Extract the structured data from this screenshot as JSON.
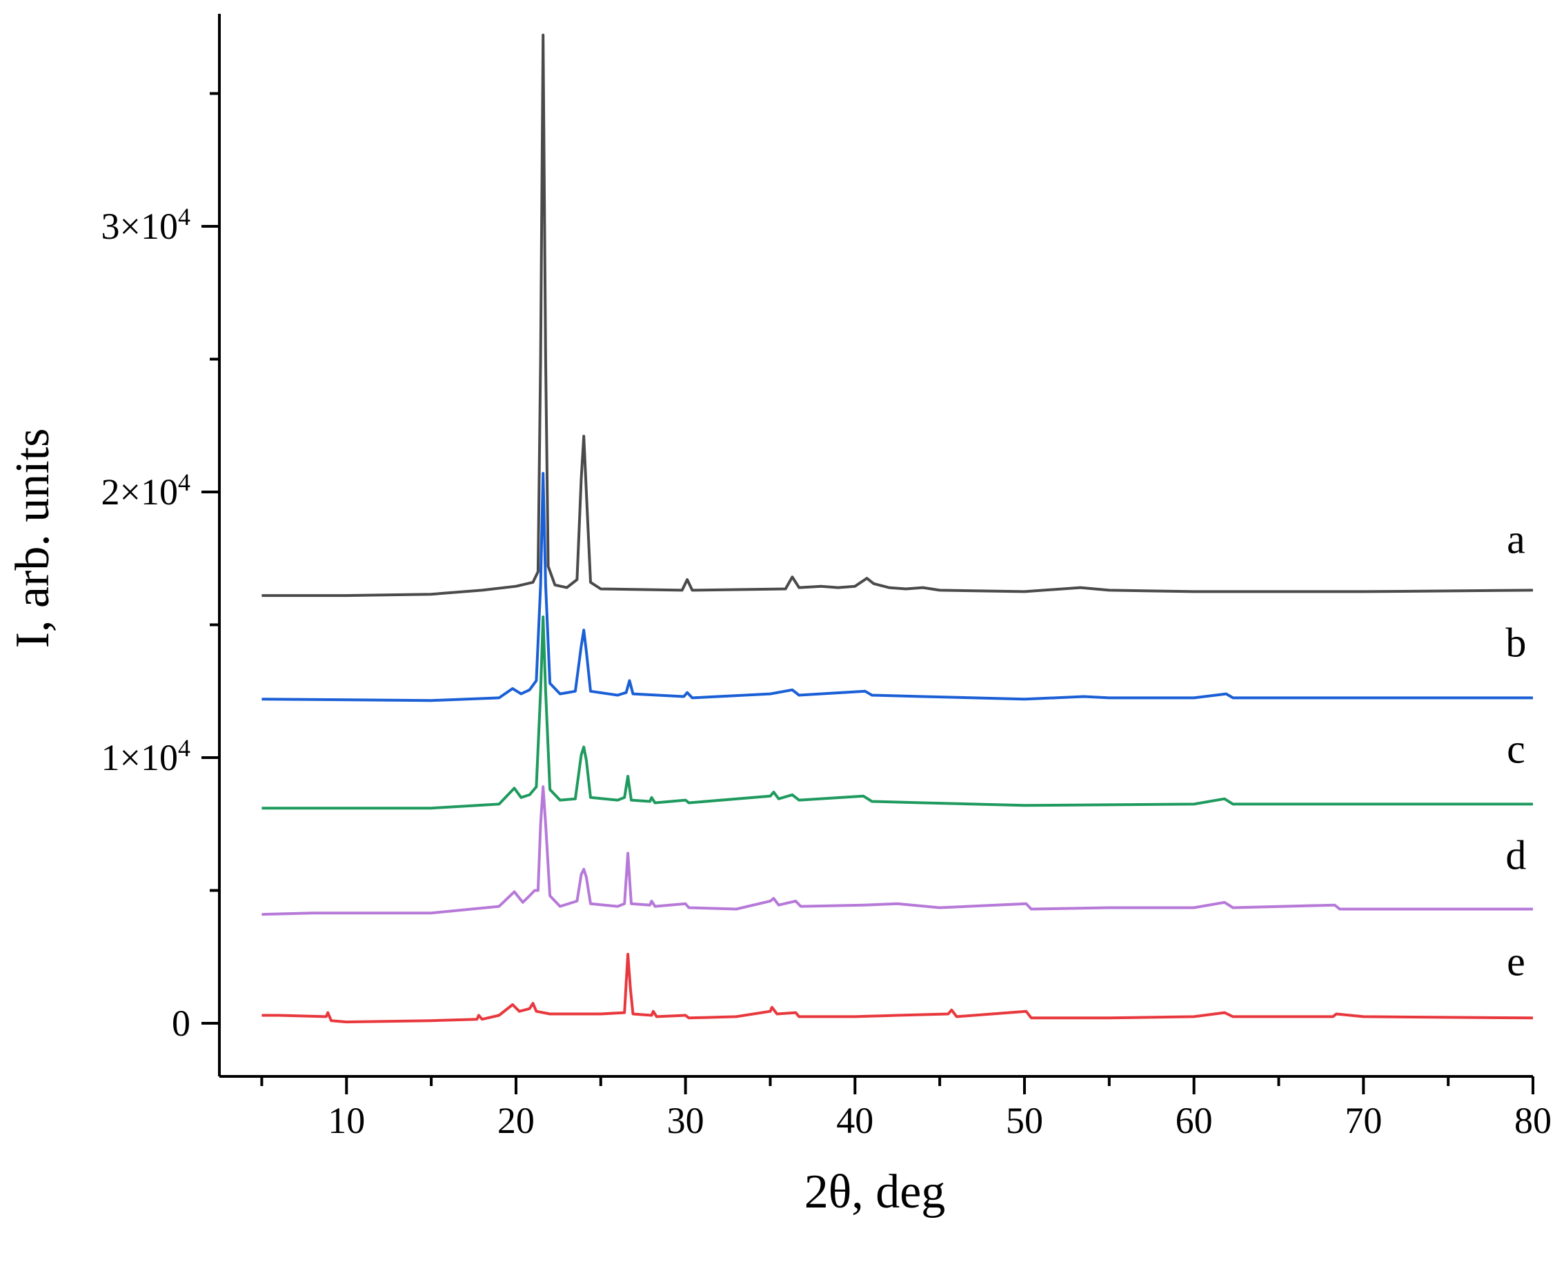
{
  "chart_data": {
    "type": "line",
    "title": "",
    "xlabel": "2θ, deg",
    "ylabel": "I, arb. units",
    "xlim": [
      2.5,
      80
    ],
    "ylim": [
      -2000,
      38000
    ],
    "x_ticks": [
      {
        "value": 10,
        "label": "10"
      },
      {
        "value": 20,
        "label": "20"
      },
      {
        "value": 30,
        "label": "30"
      },
      {
        "value": 40,
        "label": "40"
      },
      {
        "value": 50,
        "label": "50"
      },
      {
        "value": 60,
        "label": "60"
      },
      {
        "value": 70,
        "label": "70"
      },
      {
        "value": 80,
        "label": "80"
      }
    ],
    "y_ticks": [
      {
        "value": 0,
        "label": "0",
        "mantissa": "",
        "exponent": ""
      },
      {
        "value": 10000,
        "label": "1×10^4",
        "mantissa": "1×10",
        "exponent": "4"
      },
      {
        "value": 20000,
        "label": "2×10^4",
        "mantissa": "2×10",
        "exponent": "4"
      },
      {
        "value": 30000,
        "label": "3×10^4",
        "mantissa": "3×10",
        "exponent": "4"
      }
    ],
    "grid": false,
    "series": [
      {
        "name": "a",
        "color": "#4a4a4a",
        "label_pos": [
          79,
          17700
        ],
        "points": [
          [
            5,
            16100
          ],
          [
            10,
            16100
          ],
          [
            15,
            16150
          ],
          [
            18,
            16300
          ],
          [
            20,
            16450
          ],
          [
            21,
            16600
          ],
          [
            21.3,
            17000
          ],
          [
            21.45,
            25000
          ],
          [
            21.6,
            37200
          ],
          [
            21.75,
            25000
          ],
          [
            21.9,
            17200
          ],
          [
            22.3,
            16500
          ],
          [
            23,
            16400
          ],
          [
            23.6,
            16700
          ],
          [
            23.85,
            20500
          ],
          [
            24.0,
            22100
          ],
          [
            24.15,
            20000
          ],
          [
            24.4,
            16600
          ],
          [
            25,
            16350
          ],
          [
            29.8,
            16300
          ],
          [
            30.1,
            16700
          ],
          [
            30.4,
            16300
          ],
          [
            35.9,
            16350
          ],
          [
            36.3,
            16800
          ],
          [
            36.7,
            16400
          ],
          [
            38,
            16450
          ],
          [
            39,
            16400
          ],
          [
            40,
            16450
          ],
          [
            40.7,
            16750
          ],
          [
            41.1,
            16550
          ],
          [
            42,
            16400
          ],
          [
            43,
            16350
          ],
          [
            44,
            16400
          ],
          [
            45,
            16300
          ],
          [
            50,
            16250
          ],
          [
            53.3,
            16400
          ],
          [
            55,
            16300
          ],
          [
            60,
            16250
          ],
          [
            70,
            16250
          ],
          [
            80,
            16300
          ]
        ]
      },
      {
        "name": "b",
        "color": "#1a5fd6",
        "label_pos": [
          79,
          13800
        ],
        "points": [
          [
            5,
            12200
          ],
          [
            15,
            12150
          ],
          [
            19,
            12250
          ],
          [
            19.8,
            12600
          ],
          [
            20.3,
            12400
          ],
          [
            20.8,
            12550
          ],
          [
            21.2,
            12900
          ],
          [
            21.45,
            16500
          ],
          [
            21.6,
            20700
          ],
          [
            21.75,
            16500
          ],
          [
            22,
            12800
          ],
          [
            22.6,
            12400
          ],
          [
            23.5,
            12500
          ],
          [
            23.85,
            14200
          ],
          [
            24.0,
            14800
          ],
          [
            24.15,
            14000
          ],
          [
            24.4,
            12500
          ],
          [
            26,
            12350
          ],
          [
            26.5,
            12450
          ],
          [
            26.7,
            12900
          ],
          [
            26.9,
            12400
          ],
          [
            29.9,
            12300
          ],
          [
            30.1,
            12450
          ],
          [
            30.4,
            12250
          ],
          [
            35,
            12400
          ],
          [
            36.3,
            12550
          ],
          [
            36.7,
            12350
          ],
          [
            40.6,
            12500
          ],
          [
            41,
            12350
          ],
          [
            44,
            12300
          ],
          [
            50,
            12200
          ],
          [
            53.5,
            12300
          ],
          [
            55,
            12250
          ],
          [
            60,
            12250
          ],
          [
            61.9,
            12400
          ],
          [
            62.3,
            12250
          ],
          [
            70,
            12250
          ],
          [
            80,
            12250
          ]
        ]
      },
      {
        "name": "c",
        "color": "#1f9a5e",
        "label_pos": [
          79,
          9800
        ],
        "points": [
          [
            5,
            8100
          ],
          [
            15,
            8100
          ],
          [
            19,
            8250
          ],
          [
            19.9,
            8850
          ],
          [
            20.3,
            8500
          ],
          [
            20.8,
            8600
          ],
          [
            21.2,
            8900
          ],
          [
            21.45,
            12500
          ],
          [
            21.6,
            15300
          ],
          [
            21.75,
            12500
          ],
          [
            22,
            8800
          ],
          [
            22.6,
            8400
          ],
          [
            23.5,
            8450
          ],
          [
            23.85,
            10100
          ],
          [
            24.0,
            10400
          ],
          [
            24.15,
            9900
          ],
          [
            24.4,
            8500
          ],
          [
            26,
            8400
          ],
          [
            26.4,
            8500
          ],
          [
            26.6,
            9300
          ],
          [
            26.8,
            8400
          ],
          [
            27.9,
            8350
          ],
          [
            28,
            8500
          ],
          [
            28.2,
            8300
          ],
          [
            30,
            8400
          ],
          [
            30.2,
            8300
          ],
          [
            35,
            8550
          ],
          [
            35.2,
            8700
          ],
          [
            35.5,
            8450
          ],
          [
            36.3,
            8600
          ],
          [
            36.7,
            8400
          ],
          [
            40.5,
            8550
          ],
          [
            41,
            8350
          ],
          [
            44,
            8300
          ],
          [
            50,
            8200
          ],
          [
            60,
            8250
          ],
          [
            61.8,
            8450
          ],
          [
            62.3,
            8250
          ],
          [
            70,
            8250
          ],
          [
            80,
            8250
          ]
        ]
      },
      {
        "name": "d",
        "color": "#b679d8",
        "label_pos": [
          79,
          5800
        ],
        "points": [
          [
            5,
            4100
          ],
          [
            8,
            4150
          ],
          [
            15,
            4150
          ],
          [
            19,
            4400
          ],
          [
            19.9,
            4950
          ],
          [
            20.4,
            4550
          ],
          [
            20.8,
            4800
          ],
          [
            21.1,
            5000
          ],
          [
            21.3,
            5000
          ],
          [
            21.45,
            7500
          ],
          [
            21.6,
            8900
          ],
          [
            21.75,
            7500
          ],
          [
            22,
            4800
          ],
          [
            22.6,
            4400
          ],
          [
            23.6,
            4600
          ],
          [
            23.85,
            5600
          ],
          [
            24.0,
            5800
          ],
          [
            24.15,
            5500
          ],
          [
            24.4,
            4500
          ],
          [
            26,
            4400
          ],
          [
            26.4,
            4500
          ],
          [
            26.6,
            6400
          ],
          [
            26.8,
            4500
          ],
          [
            27.9,
            4450
          ],
          [
            28,
            4600
          ],
          [
            28.2,
            4400
          ],
          [
            30,
            4500
          ],
          [
            30.2,
            4350
          ],
          [
            33,
            4300
          ],
          [
            35,
            4600
          ],
          [
            35.2,
            4700
          ],
          [
            35.5,
            4450
          ],
          [
            36.5,
            4600
          ],
          [
            36.8,
            4400
          ],
          [
            40.5,
            4450
          ],
          [
            42.5,
            4500
          ],
          [
            45,
            4350
          ],
          [
            50.1,
            4500
          ],
          [
            50.4,
            4300
          ],
          [
            55,
            4350
          ],
          [
            60,
            4350
          ],
          [
            61.8,
            4550
          ],
          [
            62.3,
            4350
          ],
          [
            68.3,
            4450
          ],
          [
            68.6,
            4300
          ],
          [
            70,
            4300
          ],
          [
            80,
            4300
          ]
        ]
      },
      {
        "name": "e",
        "color": "#e8383d",
        "label_pos": [
          79,
          1800
        ],
        "points": [
          [
            5,
            300
          ],
          [
            6,
            300
          ],
          [
            8.8,
            250
          ],
          [
            8.9,
            400
          ],
          [
            9.1,
            100
          ],
          [
            10,
            50
          ],
          [
            15,
            100
          ],
          [
            17.7,
            150
          ],
          [
            17.8,
            300
          ],
          [
            18,
            150
          ],
          [
            19,
            300
          ],
          [
            19.8,
            700
          ],
          [
            20.2,
            450
          ],
          [
            20.8,
            550
          ],
          [
            21,
            750
          ],
          [
            21.2,
            450
          ],
          [
            22,
            350
          ],
          [
            25,
            350
          ],
          [
            26.4,
            400
          ],
          [
            26.5,
            1500
          ],
          [
            26.6,
            2600
          ],
          [
            26.75,
            1300
          ],
          [
            26.9,
            350
          ],
          [
            28,
            300
          ],
          [
            28.1,
            450
          ],
          [
            28.3,
            250
          ],
          [
            30,
            300
          ],
          [
            30.2,
            200
          ],
          [
            33,
            250
          ],
          [
            35,
            450
          ],
          [
            35.1,
            600
          ],
          [
            35.4,
            350
          ],
          [
            36.5,
            400
          ],
          [
            36.7,
            250
          ],
          [
            40,
            250
          ],
          [
            42.5,
            300
          ],
          [
            45.5,
            350
          ],
          [
            45.7,
            500
          ],
          [
            46,
            250
          ],
          [
            50.1,
            450
          ],
          [
            50.4,
            200
          ],
          [
            55,
            200
          ],
          [
            60,
            250
          ],
          [
            61.8,
            400
          ],
          [
            62.3,
            250
          ],
          [
            68.2,
            250
          ],
          [
            68.4,
            350
          ],
          [
            70,
            250
          ],
          [
            80,
            200
          ]
        ]
      }
    ]
  }
}
